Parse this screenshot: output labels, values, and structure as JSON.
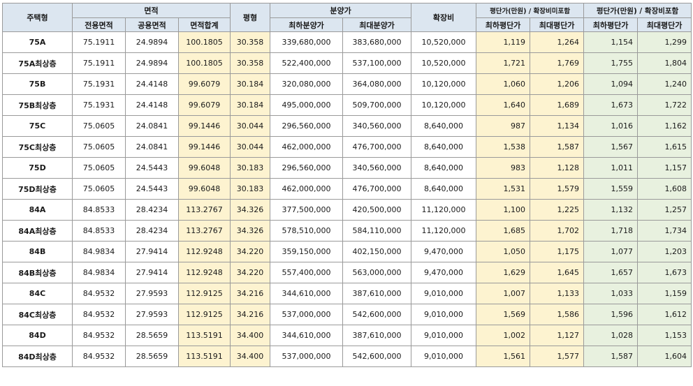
{
  "headers": {
    "type": "주택형",
    "area_group": "면적",
    "area_exclusive": "전용면적",
    "area_common": "공용면적",
    "area_total": "면적합계",
    "pyeong": "평형",
    "price_group": "분양가",
    "price_min": "최하분양가",
    "price_max": "최대분양가",
    "expansion": "확장비",
    "ppp_excl_group": "평단가(만원) / 확장비미포함",
    "ppp_excl_min": "최하평단가",
    "ppp_excl_max": "최대평단가",
    "ppp_incl_group": "평단가(만원) / 확장비포함",
    "ppp_incl_min": "최하평단가",
    "ppp_incl_max": "최대평단가"
  },
  "rows": [
    {
      "type": "75A",
      "excl": "75.1911",
      "common": "24.9894",
      "total": "100.1805",
      "pyeong": "30.358",
      "pmin": "339,680,000",
      "pmax": "383,680,000",
      "exp": "10,520,000",
      "a": "1,119",
      "b": "1,264",
      "c": "1,154",
      "d": "1,299"
    },
    {
      "type": "75A최상층",
      "excl": "75.1911",
      "common": "24.9894",
      "total": "100.1805",
      "pyeong": "30.358",
      "pmin": "522,400,000",
      "pmax": "537,100,000",
      "exp": "10,520,000",
      "a": "1,721",
      "b": "1,769",
      "c": "1,755",
      "d": "1,804"
    },
    {
      "type": "75B",
      "excl": "75.1931",
      "common": "24.4148",
      "total": "99.6079",
      "pyeong": "30.184",
      "pmin": "320,080,000",
      "pmax": "364,080,000",
      "exp": "10,120,000",
      "a": "1,060",
      "b": "1,206",
      "c": "1,094",
      "d": "1,240"
    },
    {
      "type": "75B최상층",
      "excl": "75.1931",
      "common": "24.4148",
      "total": "99.6079",
      "pyeong": "30.184",
      "pmin": "495,000,000",
      "pmax": "509,700,000",
      "exp": "10,120,000",
      "a": "1,640",
      "b": "1,689",
      "c": "1,673",
      "d": "1,722"
    },
    {
      "type": "75C",
      "excl": "75.0605",
      "common": "24.0841",
      "total": "99.1446",
      "pyeong": "30.044",
      "pmin": "296,560,000",
      "pmax": "340,560,000",
      "exp": "8,640,000",
      "a": "987",
      "b": "1,134",
      "c": "1,016",
      "d": "1,162"
    },
    {
      "type": "75C최상층",
      "excl": "75.0605",
      "common": "24.0841",
      "total": "99.1446",
      "pyeong": "30.044",
      "pmin": "462,000,000",
      "pmax": "476,700,000",
      "exp": "8,640,000",
      "a": "1,538",
      "b": "1,587",
      "c": "1,567",
      "d": "1,615"
    },
    {
      "type": "75D",
      "excl": "75.0605",
      "common": "24.5443",
      "total": "99.6048",
      "pyeong": "30.183",
      "pmin": "296,560,000",
      "pmax": "340,560,000",
      "exp": "8,640,000",
      "a": "983",
      "b": "1,128",
      "c": "1,011",
      "d": "1,157"
    },
    {
      "type": "75D최상층",
      "excl": "75.0605",
      "common": "24.5443",
      "total": "99.6048",
      "pyeong": "30.183",
      "pmin": "462,000,000",
      "pmax": "476,700,000",
      "exp": "8,640,000",
      "a": "1,531",
      "b": "1,579",
      "c": "1,559",
      "d": "1,608"
    },
    {
      "type": "84A",
      "excl": "84.8533",
      "common": "28.4234",
      "total": "113.2767",
      "pyeong": "34.326",
      "pmin": "377,500,000",
      "pmax": "420,500,000",
      "exp": "11,120,000",
      "a": "1,100",
      "b": "1,225",
      "c": "1,132",
      "d": "1,257"
    },
    {
      "type": "84A최상층",
      "excl": "84.8533",
      "common": "28.4234",
      "total": "113.2767",
      "pyeong": "34.326",
      "pmin": "578,510,000",
      "pmax": "584,110,000",
      "exp": "11,120,000",
      "a": "1,685",
      "b": "1,702",
      "c": "1,718",
      "d": "1,734"
    },
    {
      "type": "84B",
      "excl": "84.9834",
      "common": "27.9414",
      "total": "112.9248",
      "pyeong": "34.220",
      "pmin": "359,150,000",
      "pmax": "402,150,000",
      "exp": "9,470,000",
      "a": "1,050",
      "b": "1,175",
      "c": "1,077",
      "d": "1,203"
    },
    {
      "type": "84B최상층",
      "excl": "84.9834",
      "common": "27.9414",
      "total": "112.9248",
      "pyeong": "34.220",
      "pmin": "557,400,000",
      "pmax": "563,000,000",
      "exp": "9,470,000",
      "a": "1,629",
      "b": "1,645",
      "c": "1,657",
      "d": "1,673"
    },
    {
      "type": "84C",
      "excl": "84.9532",
      "common": "27.9593",
      "total": "112.9125",
      "pyeong": "34.216",
      "pmin": "344,610,000",
      "pmax": "387,610,000",
      "exp": "9,010,000",
      "a": "1,007",
      "b": "1,133",
      "c": "1,033",
      "d": "1,159"
    },
    {
      "type": "84C최상층",
      "excl": "84.9532",
      "common": "27.9593",
      "total": "112.9125",
      "pyeong": "34.216",
      "pmin": "537,000,000",
      "pmax": "542,600,000",
      "exp": "9,010,000",
      "a": "1,569",
      "b": "1,586",
      "c": "1,596",
      "d": "1,612"
    },
    {
      "type": "84D",
      "excl": "84.9532",
      "common": "28.5659",
      "total": "113.5191",
      "pyeong": "34.400",
      "pmin": "344,610,000",
      "pmax": "387,610,000",
      "exp": "9,010,000",
      "a": "1,002",
      "b": "1,127",
      "c": "1,028",
      "d": "1,153"
    },
    {
      "type": "84D최상층",
      "excl": "84.9532",
      "common": "28.5659",
      "total": "113.5191",
      "pyeong": "34.400",
      "pmin": "537,000,000",
      "pmax": "542,600,000",
      "exp": "9,010,000",
      "a": "1,561",
      "b": "1,577",
      "c": "1,587",
      "d": "1,604"
    }
  ]
}
